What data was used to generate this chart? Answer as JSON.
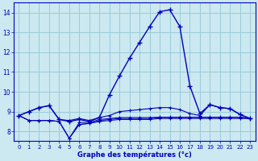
{
  "title": "Graphe des températures (°c)",
  "hours": [
    0,
    1,
    2,
    3,
    4,
    5,
    6,
    7,
    8,
    9,
    10,
    11,
    12,
    13,
    14,
    15,
    16,
    17,
    18,
    19,
    20,
    21,
    22,
    23
  ],
  "line_main": [
    8.8,
    9.0,
    9.2,
    9.3,
    8.6,
    8.5,
    8.6,
    8.5,
    8.7,
    9.85,
    10.8,
    11.7,
    12.5,
    13.3,
    14.05,
    14.15,
    13.3,
    10.3,
    8.9,
    9.35,
    9.2,
    9.15,
    8.85,
    8.65
  ],
  "line_upper": [
    8.8,
    9.0,
    9.2,
    9.3,
    8.6,
    8.55,
    8.65,
    8.55,
    8.7,
    8.8,
    9.0,
    9.05,
    9.1,
    9.15,
    9.2,
    9.2,
    9.1,
    8.9,
    8.8,
    9.35,
    9.2,
    9.15,
    8.85,
    8.65
  ],
  "line_a": [
    8.8,
    8.55,
    8.55,
    8.55,
    8.5,
    7.65,
    8.35,
    8.4,
    8.5,
    8.55,
    8.6,
    8.6,
    8.6,
    8.6,
    8.65,
    8.65,
    8.65,
    8.65,
    8.65,
    8.65,
    8.65,
    8.65,
    8.65,
    8.65
  ],
  "line_b": [
    8.8,
    8.55,
    8.55,
    8.55,
    8.5,
    7.65,
    8.35,
    8.4,
    8.55,
    8.6,
    8.65,
    8.65,
    8.65,
    8.65,
    8.7,
    8.7,
    8.7,
    8.7,
    8.7,
    8.7,
    8.7,
    8.7,
    8.7,
    8.65
  ],
  "line_c": [
    8.8,
    8.55,
    8.55,
    8.55,
    8.5,
    7.65,
    8.45,
    8.45,
    8.6,
    8.65,
    8.7,
    8.7,
    8.7,
    8.7,
    8.72,
    8.72,
    8.72,
    8.72,
    8.72,
    8.72,
    8.72,
    8.72,
    8.72,
    8.65
  ],
  "bg_color": "#cce8f0",
  "grid_color": "#99ccd8",
  "line_color": "#0000bb",
  "ylim": [
    7.5,
    14.5
  ],
  "xlim": [
    -0.5,
    23.5
  ],
  "yticks": [
    8,
    9,
    10,
    11,
    12,
    13,
    14
  ],
  "xticks": [
    0,
    1,
    2,
    3,
    4,
    5,
    6,
    7,
    8,
    9,
    10,
    11,
    12,
    13,
    14,
    15,
    16,
    17,
    18,
    19,
    20,
    21,
    22,
    23
  ]
}
